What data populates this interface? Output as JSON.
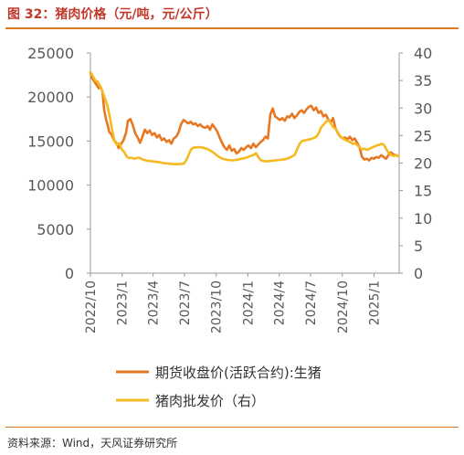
{
  "title": "图 32：猪肉价格（元/吨，元/公斤）",
  "source": "资料来源：Wind，天风证券研究所",
  "chart_data": {
    "type": "line",
    "x_tick_labels": [
      "2022/10",
      "2023/1",
      "2023/4",
      "2023/7",
      "2023/10",
      "2024/1",
      "2024/4",
      "2024/7",
      "2024/10",
      "2025/1"
    ],
    "x_range": [
      "2022-10-01",
      "2025-03-15"
    ],
    "y_left": {
      "ticks": [
        "0",
        "5000",
        "10000",
        "15000",
        "20000",
        "25000"
      ],
      "ylim": [
        0,
        25000
      ]
    },
    "y_right": {
      "ticks": [
        "0",
        "5",
        "10",
        "15",
        "20",
        "25",
        "30",
        "35",
        "40"
      ],
      "ylim": [
        0,
        40
      ]
    },
    "grid": false,
    "legend_position": "bottom",
    "series": [
      {
        "name": "期货收盘价(活跃合约):生猪",
        "axis": "left",
        "color": "#E87722",
        "points": [
          [
            "2022-10-01",
            22800
          ],
          [
            "2022-10-05",
            22200
          ],
          [
            "2022-10-10",
            21900
          ],
          [
            "2022-10-15",
            21600
          ],
          [
            "2022-10-20",
            21300
          ],
          [
            "2022-10-25",
            21000
          ],
          [
            "2022-10-30",
            21200
          ],
          [
            "2022-11-05",
            20600
          ],
          [
            "2022-11-10",
            18500
          ],
          [
            "2022-11-15",
            17500
          ],
          [
            "2022-11-20",
            16800
          ],
          [
            "2022-11-25",
            16000
          ],
          [
            "2022-12-01",
            15800
          ],
          [
            "2022-12-08",
            15100
          ],
          [
            "2022-12-15",
            14800
          ],
          [
            "2022-12-22",
            14200
          ],
          [
            "2022-12-28",
            14600
          ],
          [
            "2023-01-05",
            15100
          ],
          [
            "2023-01-12",
            15900
          ],
          [
            "2023-01-18",
            17300
          ],
          [
            "2023-01-25",
            17500
          ],
          [
            "2023-02-01",
            16800
          ],
          [
            "2023-02-08",
            15900
          ],
          [
            "2023-02-15",
            15400
          ],
          [
            "2023-02-22",
            14800
          ],
          [
            "2023-03-01",
            15500
          ],
          [
            "2023-03-08",
            16300
          ],
          [
            "2023-03-15",
            15900
          ],
          [
            "2023-03-22",
            16200
          ],
          [
            "2023-03-29",
            15700
          ],
          [
            "2023-04-05",
            15900
          ],
          [
            "2023-04-12",
            15400
          ],
          [
            "2023-04-19",
            15700
          ],
          [
            "2023-04-26",
            15100
          ],
          [
            "2023-05-03",
            15300
          ],
          [
            "2023-05-10",
            14900
          ],
          [
            "2023-05-17",
            15100
          ],
          [
            "2023-05-24",
            14700
          ],
          [
            "2023-05-31",
            15300
          ],
          [
            "2023-06-07",
            15500
          ],
          [
            "2023-06-14",
            16000
          ],
          [
            "2023-06-21",
            16900
          ],
          [
            "2023-06-28",
            17400
          ],
          [
            "2023-07-05",
            17200
          ],
          [
            "2023-07-12",
            17000
          ],
          [
            "2023-07-19",
            17200
          ],
          [
            "2023-07-26",
            16900
          ],
          [
            "2023-08-02",
            17000
          ],
          [
            "2023-08-09",
            16700
          ],
          [
            "2023-08-16",
            16900
          ],
          [
            "2023-08-23",
            16600
          ],
          [
            "2023-08-30",
            16500
          ],
          [
            "2023-09-06",
            16700
          ],
          [
            "2023-09-13",
            16300
          ],
          [
            "2023-09-20",
            16900
          ],
          [
            "2023-09-27",
            16500
          ],
          [
            "2023-10-04",
            16100
          ],
          [
            "2023-10-11",
            15400
          ],
          [
            "2023-10-18",
            14800
          ],
          [
            "2023-10-25",
            14300
          ],
          [
            "2023-11-01",
            14000
          ],
          [
            "2023-11-08",
            14500
          ],
          [
            "2023-11-15",
            13900
          ],
          [
            "2023-11-22",
            14100
          ],
          [
            "2023-11-29",
            13600
          ],
          [
            "2023-12-06",
            13800
          ],
          [
            "2023-12-13",
            14200
          ],
          [
            "2023-12-20",
            14000
          ],
          [
            "2023-12-27",
            14300
          ],
          [
            "2024-01-03",
            14500
          ],
          [
            "2024-01-10",
            14200
          ],
          [
            "2024-01-17",
            14700
          ],
          [
            "2024-01-24",
            14300
          ],
          [
            "2024-01-31",
            14600
          ],
          [
            "2024-02-07",
            14900
          ],
          [
            "2024-02-14",
            15100
          ],
          [
            "2024-02-21",
            15500
          ],
          [
            "2024-02-28",
            15300
          ],
          [
            "2024-03-06",
            18000
          ],
          [
            "2024-03-13",
            18700
          ],
          [
            "2024-03-20",
            17800
          ],
          [
            "2024-03-27",
            17600
          ],
          [
            "2024-04-03",
            17400
          ],
          [
            "2024-04-10",
            17600
          ],
          [
            "2024-04-17",
            17300
          ],
          [
            "2024-04-24",
            17800
          ],
          [
            "2024-05-01",
            17700
          ],
          [
            "2024-05-08",
            18100
          ],
          [
            "2024-05-15",
            17600
          ],
          [
            "2024-05-22",
            17900
          ],
          [
            "2024-05-29",
            18300
          ],
          [
            "2024-06-05",
            18500
          ],
          [
            "2024-06-12",
            18200
          ],
          [
            "2024-06-19",
            18600
          ],
          [
            "2024-06-26",
            18900
          ],
          [
            "2024-07-03",
            19000
          ],
          [
            "2024-07-10",
            18500
          ],
          [
            "2024-07-17",
            18800
          ],
          [
            "2024-07-24",
            18200
          ],
          [
            "2024-07-31",
            18400
          ],
          [
            "2024-08-07",
            17800
          ],
          [
            "2024-08-14",
            18000
          ],
          [
            "2024-08-21",
            17500
          ],
          [
            "2024-08-28",
            17100
          ],
          [
            "2024-09-04",
            17600
          ],
          [
            "2024-09-11",
            16500
          ],
          [
            "2024-09-18",
            15900
          ],
          [
            "2024-09-25",
            15500
          ],
          [
            "2024-10-02",
            15300
          ],
          [
            "2024-10-09",
            15400
          ],
          [
            "2024-10-16",
            15200
          ],
          [
            "2024-10-23",
            15500
          ],
          [
            "2024-10-30",
            15100
          ],
          [
            "2024-11-06",
            15300
          ],
          [
            "2024-11-13",
            14800
          ],
          [
            "2024-11-20",
            14300
          ],
          [
            "2024-11-27",
            13200
          ],
          [
            "2024-12-04",
            12900
          ],
          [
            "2024-12-11",
            13000
          ],
          [
            "2024-12-18",
            12800
          ],
          [
            "2024-12-25",
            13100
          ],
          [
            "2025-01-01",
            13000
          ],
          [
            "2025-01-08",
            13200
          ],
          [
            "2025-01-15",
            13100
          ],
          [
            "2025-01-22",
            13400
          ],
          [
            "2025-01-29",
            13200
          ],
          [
            "2025-02-05",
            13000
          ],
          [
            "2025-02-12",
            13400
          ],
          [
            "2025-02-19",
            13700
          ],
          [
            "2025-02-26",
            13500
          ],
          [
            "2025-03-05",
            13400
          ],
          [
            "2025-03-12",
            13300
          ]
        ]
      },
      {
        "name": "猪肉批发价（右）",
        "axis": "right",
        "color": "#F5B921",
        "points": [
          [
            "2022-10-01",
            36.5
          ],
          [
            "2022-10-08",
            35.8
          ],
          [
            "2022-10-15",
            35.0
          ],
          [
            "2022-10-22",
            34.8
          ],
          [
            "2022-10-29",
            34.0
          ],
          [
            "2022-11-05",
            33.0
          ],
          [
            "2022-11-12",
            31.8
          ],
          [
            "2022-11-19",
            30.5
          ],
          [
            "2022-11-26",
            28.5
          ],
          [
            "2022-12-03",
            26.0
          ],
          [
            "2022-12-10",
            24.0
          ],
          [
            "2022-12-17",
            23.3
          ],
          [
            "2022-12-24",
            23.6
          ],
          [
            "2022-12-31",
            22.5
          ],
          [
            "2023-01-07",
            22.0
          ],
          [
            "2023-01-14",
            21.2
          ],
          [
            "2023-01-21",
            20.9
          ],
          [
            "2023-01-28",
            21.0
          ],
          [
            "2023-02-04",
            20.8
          ],
          [
            "2023-02-11",
            20.9
          ],
          [
            "2023-02-18",
            21.0
          ],
          [
            "2023-02-25",
            20.8
          ],
          [
            "2023-03-04",
            20.6
          ],
          [
            "2023-03-18",
            20.4
          ],
          [
            "2023-04-01",
            20.3
          ],
          [
            "2023-04-15",
            20.2
          ],
          [
            "2023-05-01",
            20.0
          ],
          [
            "2023-05-15",
            19.9
          ],
          [
            "2023-06-01",
            19.8
          ],
          [
            "2023-06-15",
            19.8
          ],
          [
            "2023-06-29",
            19.9
          ],
          [
            "2023-07-06",
            20.5
          ],
          [
            "2023-07-13",
            21.5
          ],
          [
            "2023-07-20",
            22.5
          ],
          [
            "2023-07-27",
            22.8
          ],
          [
            "2023-08-10",
            22.9
          ],
          [
            "2023-08-24",
            22.8
          ],
          [
            "2023-09-07",
            22.5
          ],
          [
            "2023-09-21",
            22.0
          ],
          [
            "2023-10-05",
            21.3
          ],
          [
            "2023-10-19",
            20.8
          ],
          [
            "2023-11-02",
            20.6
          ],
          [
            "2023-11-16",
            20.5
          ],
          [
            "2023-11-30",
            20.6
          ],
          [
            "2023-12-14",
            20.8
          ],
          [
            "2023-12-28",
            21.0
          ],
          [
            "2024-01-04",
            21.2
          ],
          [
            "2024-01-18",
            21.5
          ],
          [
            "2024-01-25",
            21.8
          ],
          [
            "2024-02-01",
            21.0
          ],
          [
            "2024-02-08",
            20.5
          ],
          [
            "2024-02-22",
            20.3
          ],
          [
            "2024-03-07",
            20.4
          ],
          [
            "2024-03-21",
            20.5
          ],
          [
            "2024-04-04",
            20.6
          ],
          [
            "2024-04-18",
            20.7
          ],
          [
            "2024-05-02",
            21.0
          ],
          [
            "2024-05-16",
            21.5
          ],
          [
            "2024-05-23",
            22.5
          ],
          [
            "2024-05-30",
            23.5
          ],
          [
            "2024-06-06",
            24.0
          ],
          [
            "2024-06-20",
            24.2
          ],
          [
            "2024-07-04",
            24.4
          ],
          [
            "2024-07-18",
            24.8
          ],
          [
            "2024-07-25",
            25.5
          ],
          [
            "2024-08-01",
            26.5
          ],
          [
            "2024-08-08",
            27.0
          ],
          [
            "2024-08-15",
            27.5
          ],
          [
            "2024-08-22",
            27.8
          ],
          [
            "2024-08-29",
            27.2
          ],
          [
            "2024-09-05",
            26.5
          ],
          [
            "2024-09-12",
            26.2
          ],
          [
            "2024-09-19",
            25.5
          ],
          [
            "2024-09-26",
            24.8
          ],
          [
            "2024-10-03",
            24.5
          ],
          [
            "2024-10-10",
            24.2
          ],
          [
            "2024-10-17",
            24.0
          ],
          [
            "2024-10-24",
            23.8
          ],
          [
            "2024-10-31",
            23.5
          ],
          [
            "2024-11-07",
            23.6
          ],
          [
            "2024-11-14",
            23.2
          ],
          [
            "2024-11-21",
            22.8
          ],
          [
            "2024-11-28",
            22.5
          ],
          [
            "2024-12-05",
            22.6
          ],
          [
            "2024-12-12",
            22.4
          ],
          [
            "2024-12-19",
            22.6
          ],
          [
            "2024-12-26",
            22.8
          ],
          [
            "2025-01-02",
            23.0
          ],
          [
            "2025-01-09",
            23.2
          ],
          [
            "2025-01-16",
            23.3
          ],
          [
            "2025-01-23",
            23.5
          ],
          [
            "2025-01-30",
            23.3
          ],
          [
            "2025-02-06",
            22.5
          ],
          [
            "2025-02-13",
            21.8
          ],
          [
            "2025-02-20",
            21.5
          ],
          [
            "2025-02-27",
            21.3
          ],
          [
            "2025-03-06",
            21.5
          ],
          [
            "2025-03-13",
            21.2
          ]
        ]
      }
    ]
  }
}
